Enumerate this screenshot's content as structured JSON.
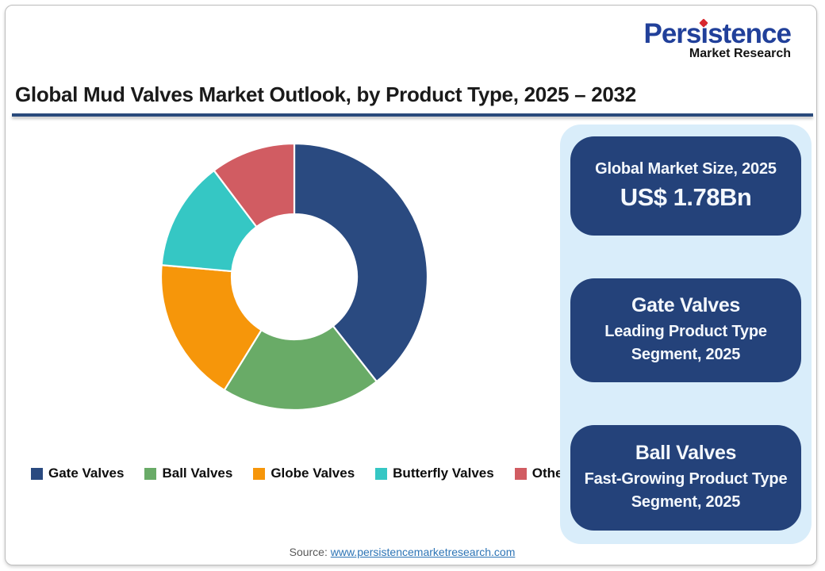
{
  "logo": {
    "name": "Persistence",
    "subtitle": "Market Research",
    "brand_color": "#21409a",
    "accent_color": "#d7282f"
  },
  "header": {
    "title": "Global Mud Valves Market Outlook, by Product Type, 2025 – 2032",
    "underline_color": "#2a4a7c"
  },
  "chart_data": {
    "type": "pie",
    "subtype": "donut",
    "title": "Global Mud Valves Market Outlook, by Product Type, 2025 – 2032",
    "categories": [
      "Gate Valves",
      "Ball Valves",
      "Globe Valves",
      "Butterfly Valves",
      "Others"
    ],
    "values": [
      39.4,
      19.4,
      17.6,
      13.3,
      10.3
    ],
    "unit": "percent_share",
    "colors": [
      "#2a4a80",
      "#69ab67",
      "#f6960a",
      "#35c7c4",
      "#d15c62"
    ],
    "start_angle_deg": 0,
    "direction": "clockwise",
    "inner_radius_ratio": 0.47,
    "slice_gap_color": "#ffffff",
    "legend_position": "bottom",
    "xlabel": "",
    "ylabel": ""
  },
  "panel": {
    "background_color": "#d9edfa",
    "card_color": "#24427a",
    "cards": [
      {
        "title": "Global Market Size, 2025",
        "value": "US$ 1.78Bn"
      },
      {
        "title": "Gate Valves",
        "subtitle": "Leading Product Type Segment, 2025"
      },
      {
        "title": "Ball Valves",
        "subtitle": "Fast-Growing Product Type Segment, 2025"
      }
    ]
  },
  "footer": {
    "source_label": "Source:",
    "source_link": "www.persistencemarketresearch.com",
    "link_color": "#2e75b6"
  }
}
